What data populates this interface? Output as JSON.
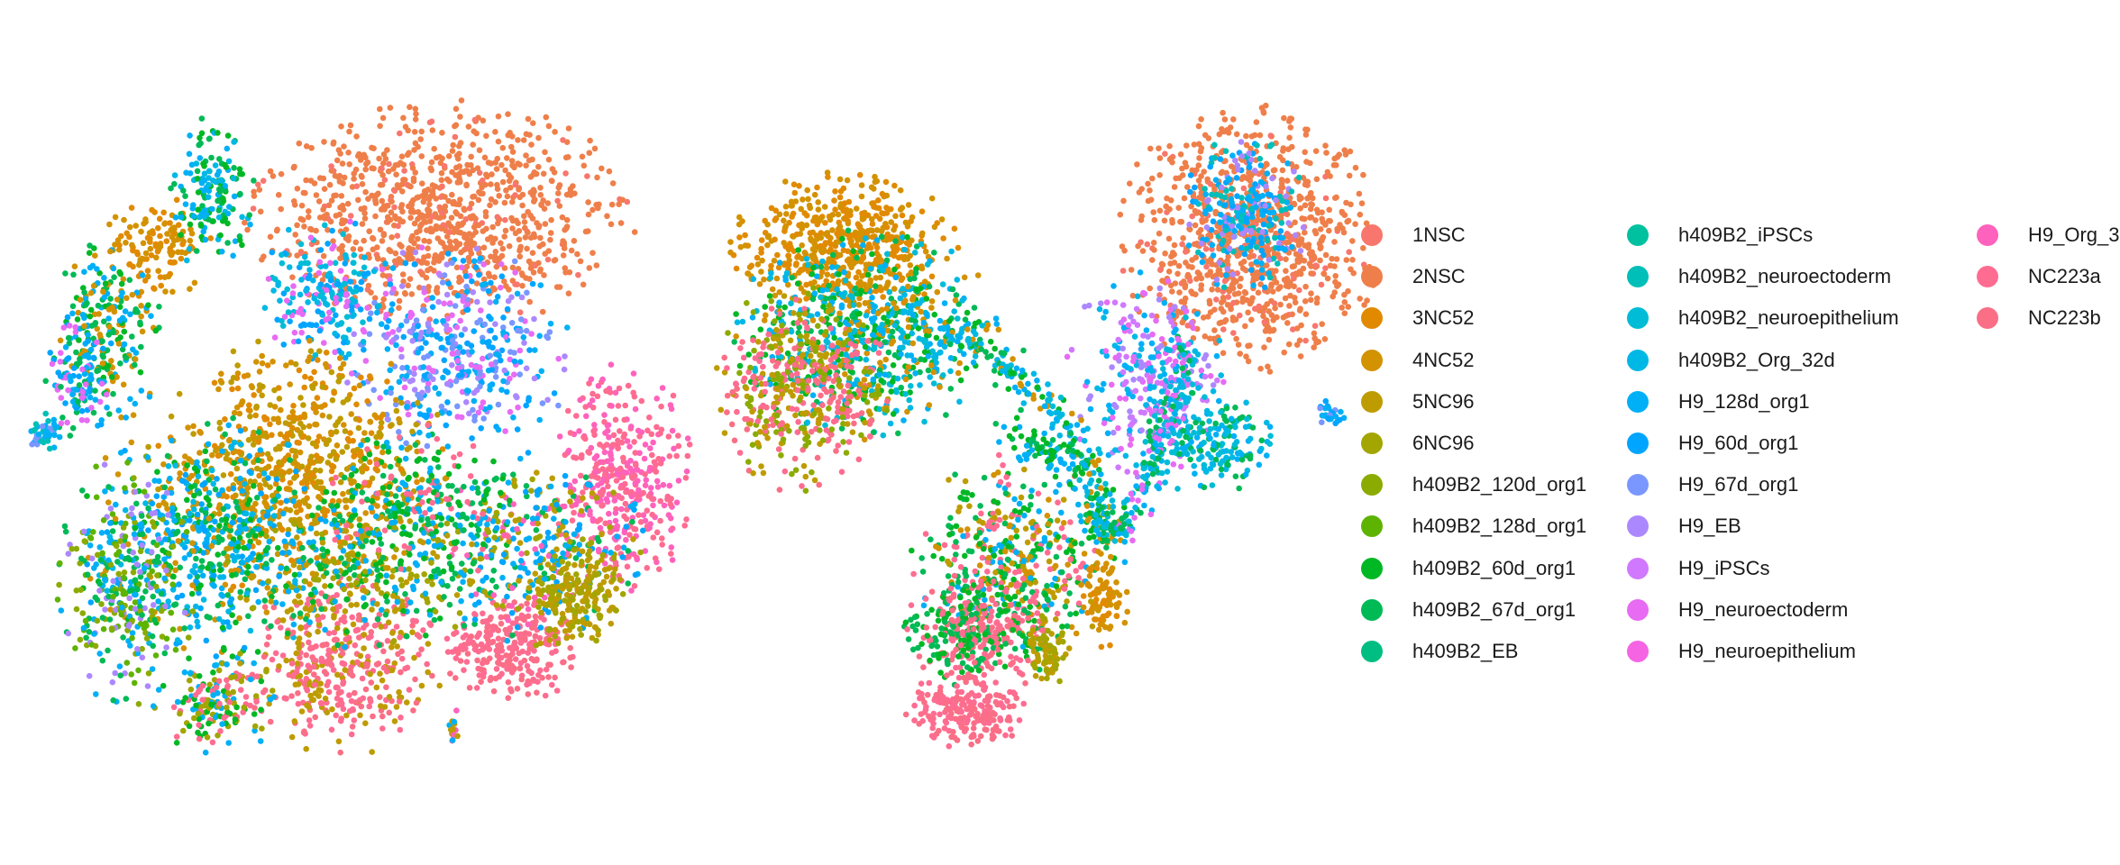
{
  "chart_data": {
    "type": "scatter",
    "title": "",
    "xlabel": "",
    "ylabel": "",
    "grid": false,
    "axes_visible": false,
    "legend_placement": "right",
    "panels": [
      {
        "name": "",
        "description_hidden": true
      },
      {
        "name": "",
        "description_hidden": true
      }
    ],
    "series": [
      {
        "name": "1NSC",
        "color": "#F8766D"
      },
      {
        "name": "2NSC",
        "color": "#EF7F4A"
      },
      {
        "name": "3NC52",
        "color": "#E18A00"
      },
      {
        "name": "4NC52",
        "color": "#D39200"
      },
      {
        "name": "5NC96",
        "color": "#BE9C00"
      },
      {
        "name": "6NC96",
        "color": "#A3A500"
      },
      {
        "name": "h409B2_120d_org1",
        "color": "#8CAB00"
      },
      {
        "name": "h409B2_128d_org1",
        "color": "#5EB300"
      },
      {
        "name": "h409B2_60d_org1",
        "color": "#00B824"
      },
      {
        "name": "h409B2_67d_org1",
        "color": "#00BA56"
      },
      {
        "name": "h409B2_EB",
        "color": "#00BE81"
      },
      {
        "name": "h409B2_iPSCs",
        "color": "#00C19F"
      },
      {
        "name": "h409B2_neuroectoderm",
        "color": "#00BFB8"
      },
      {
        "name": "h409B2_neuroepithelium",
        "color": "#00BCD6"
      },
      {
        "name": "h409B2_Org_32d",
        "color": "#00B8E5"
      },
      {
        "name": "H9_128d_org1",
        "color": "#00B0F6"
      },
      {
        "name": "H9_60d_org1",
        "color": "#00A5FF"
      },
      {
        "name": "H9_67d_org1",
        "color": "#7997FF"
      },
      {
        "name": "H9_EB",
        "color": "#AC88FF"
      },
      {
        "name": "H9_iPSCs",
        "color": "#D078FF"
      },
      {
        "name": "H9_neuroectoderm",
        "color": "#E76BF3"
      },
      {
        "name": "H9_neuroepithelium",
        "color": "#F564E3"
      },
      {
        "name": "H9_Org_3",
        "color": "#FF62BC"
      },
      {
        "name": "NC223a",
        "color": "#FF6C91"
      },
      {
        "name": "NC223b",
        "color": "#FA6E86"
      }
    ],
    "legend_columns": [
      [
        "1NSC",
        "2NSC",
        "3NC52",
        "4NC52",
        "5NC96",
        "6NC96",
        "h409B2_120d_org1",
        "h409B2_128d_org1",
        "h409B2_60d_org1",
        "h409B2_67d_org1",
        "h409B2_EB"
      ],
      [
        "h409B2_iPSCs",
        "h409B2_neuroectoderm",
        "h409B2_neuroepithelium",
        "h409B2_Org_32d",
        "H9_128d_org1",
        "H9_60d_org1",
        "H9_67d_org1",
        "H9_EB",
        "H9_iPSCs",
        "H9_neuroectoderm",
        "H9_neuroepithelium"
      ],
      [
        "H9_Org_3",
        "NC223a",
        "NC223b"
      ]
    ]
  }
}
